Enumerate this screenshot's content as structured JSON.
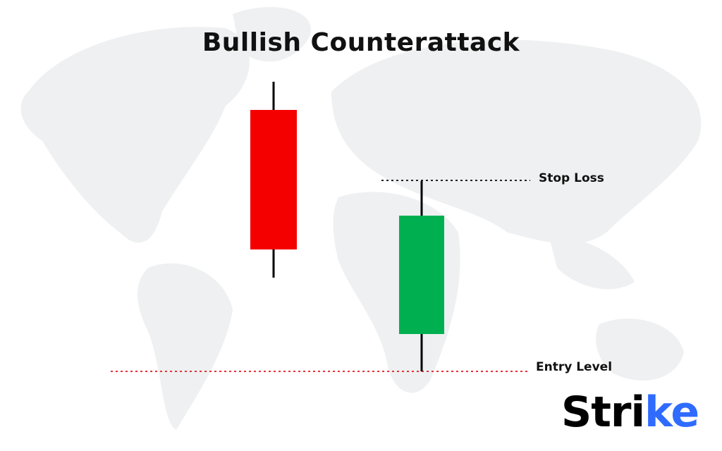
{
  "title": "Bullish Counterattack",
  "labels": {
    "stop_loss": "Stop Loss",
    "entry_level": "Entry Level"
  },
  "candles": [
    {
      "direction": "bearish",
      "color": "#f50000"
    },
    {
      "direction": "bullish",
      "color": "#00b050"
    }
  ],
  "lines": {
    "stop_loss_color": "#222222",
    "entry_level_color": "#e8303a"
  },
  "logo": {
    "text": "Strike",
    "accent": "#2f6bff"
  },
  "background": {
    "map_color": "#eef0f1"
  }
}
